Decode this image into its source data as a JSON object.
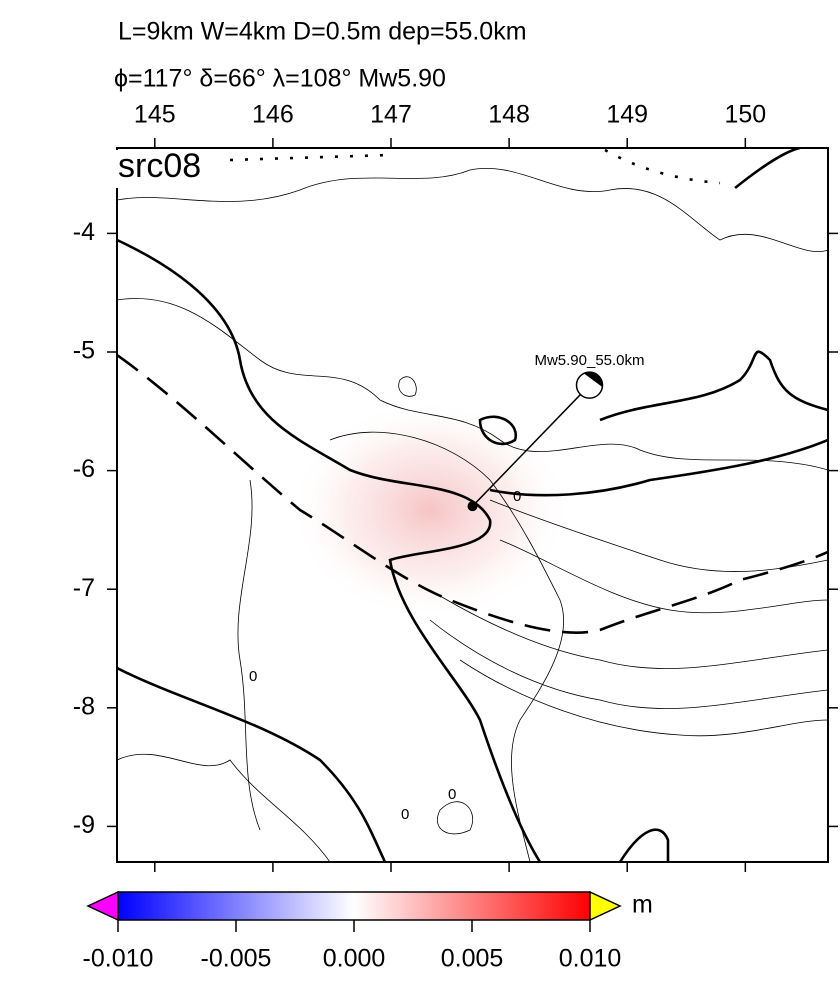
{
  "title_lines": [
    "L=9km W=4km D=0.5m dep=55.0km",
    "ϕ=117° δ=66° λ=108° Mw5.90"
  ],
  "panel_label": "src08",
  "map": {
    "xlim": [
      144.68,
      150.7
    ],
    "ylim": [
      -9.3,
      -3.28
    ],
    "xticks": [
      145,
      146,
      147,
      148,
      149,
      150
    ],
    "yticks": [
      -4,
      -5,
      -6,
      -7,
      -8,
      -9
    ]
  },
  "event": {
    "label": "Mw5.90_55.0km",
    "lon": 147.69,
    "lat": -6.3
  },
  "contour_labels": [
    "0",
    "0",
    "0",
    "0"
  ],
  "colorbar": {
    "unit": "m",
    "lim": [
      -0.01,
      0.01
    ],
    "ticks": [
      {
        "value": -0.01,
        "label": "-0.010"
      },
      {
        "value": -0.005,
        "label": "-0.005"
      },
      {
        "value": 0,
        "label": "0.000"
      },
      {
        "value": 0.005,
        "label": "0.005"
      },
      {
        "value": 0.01,
        "label": "0.010"
      }
    ]
  }
}
